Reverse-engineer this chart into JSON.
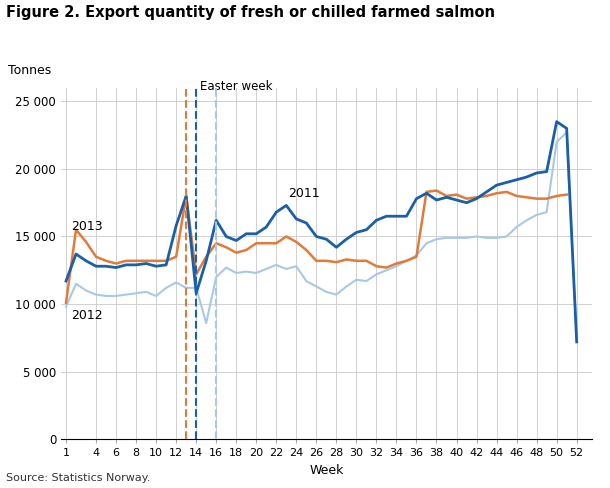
{
  "title": "Figure 2. Export quantity of fresh or chilled farmed salmon",
  "ylabel": "Tonnes",
  "xlabel": "Week",
  "source": "Source: Statistics Norway.",
  "easter_week_label": "Easter week",
  "easter_orange_x": 13,
  "easter_blue_x": 14,
  "easter_lightblue_x": 16,
  "ylim": [
    0,
    26000
  ],
  "yticks": [
    0,
    5000,
    10000,
    15000,
    20000,
    25000
  ],
  "xticks": [
    1,
    4,
    6,
    8,
    10,
    12,
    14,
    16,
    18,
    20,
    22,
    24,
    26,
    28,
    30,
    32,
    34,
    36,
    38,
    40,
    42,
    44,
    46,
    48,
    50,
    52
  ],
  "color_2013": "#1a5fa8",
  "color_prev": "#e07b39",
  "color_2012": "#a8c8e8",
  "label_2013": "2013",
  "label_2011": "2011",
  "label_2012": "2012",
  "line_2013": [
    11700,
    13700,
    13200,
    12800,
    12800,
    12700,
    12900,
    12900,
    13000,
    12800,
    12900,
    15800,
    18000,
    10800,
    13200,
    16200,
    15000,
    14700,
    15200,
    15200,
    15700,
    16800,
    17300,
    16300,
    16000,
    15000,
    14800,
    14200,
    14800,
    15300,
    15500,
    16200,
    16500,
    16500,
    16500,
    17800,
    18200,
    17700,
    17900,
    17700,
    17500,
    17800,
    18300,
    18800,
    19000,
    19200,
    19400,
    19700,
    19800,
    23500,
    23000,
    7200
  ],
  "line_prev": [
    10100,
    15500,
    14600,
    13500,
    13200,
    13000,
    13200,
    13200,
    13200,
    13200,
    13200,
    13500,
    18000,
    12200,
    13500,
    14500,
    14200,
    13800,
    14000,
    14500,
    14500,
    14500,
    15000,
    14600,
    14000,
    13200,
    13200,
    13100,
    13300,
    13200,
    13200,
    12800,
    12700,
    13000,
    13200,
    13500,
    18300,
    18400,
    18000,
    18100,
    17800,
    17900,
    18000,
    18200,
    18300,
    18000,
    17900,
    17800,
    17800,
    18000,
    18100,
    null
  ],
  "line_2012": [
    9800,
    11500,
    11000,
    10700,
    10600,
    10600,
    10700,
    10800,
    10900,
    10600,
    11200,
    11600,
    11200,
    11200,
    8600,
    12000,
    12700,
    12300,
    12400,
    12300,
    12600,
    12900,
    12600,
    12800,
    11700,
    11300,
    10900,
    10700,
    11300,
    11800,
    11700,
    12200,
    12500,
    12800,
    13200,
    13600,
    14500,
    14800,
    14900,
    14900,
    14900,
    15000,
    14900,
    14900,
    15000,
    15700,
    16200,
    16600,
    16800,
    22000,
    22700,
    7400
  ]
}
